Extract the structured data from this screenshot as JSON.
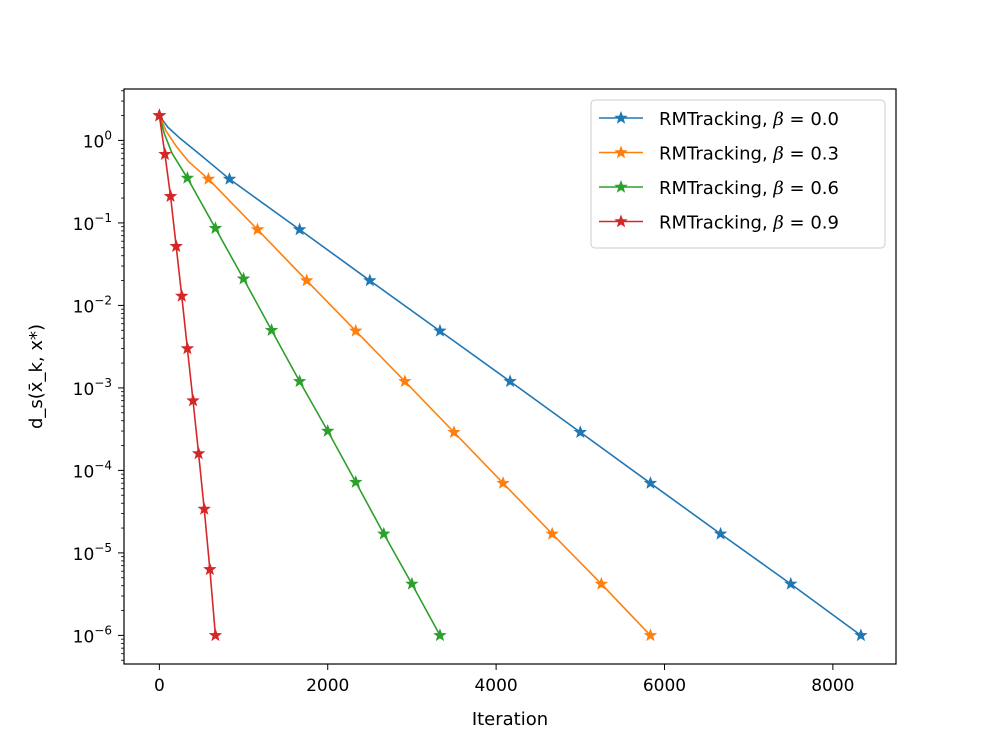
{
  "chart_data": {
    "type": "line",
    "xlabel": "Iteration",
    "ylabel": "d_s(x̄_k, x*)",
    "yscale": "log",
    "xlim": [
      -420,
      8750
    ],
    "ylim": [
      4.5e-07,
      4.2
    ],
    "xticks": [
      {
        "value": 0,
        "label": "0"
      },
      {
        "value": 2000,
        "label": "2000"
      },
      {
        "value": 4000,
        "label": "4000"
      },
      {
        "value": 6000,
        "label": "6000"
      },
      {
        "value": 8000,
        "label": "8000"
      }
    ],
    "yticks": [
      {
        "value": 1,
        "base": "10",
        "exp": "0"
      },
      {
        "value": 0.1,
        "base": "10",
        "exp": "−1"
      },
      {
        "value": 0.01,
        "base": "10",
        "exp": "−2"
      },
      {
        "value": 0.001,
        "base": "10",
        "exp": "−3"
      },
      {
        "value": 0.0001,
        "base": "10",
        "exp": "−4"
      },
      {
        "value": 1e-05,
        "base": "10",
        "exp": "−5"
      },
      {
        "value": 1e-06,
        "base": "10",
        "exp": "−6"
      }
    ],
    "grid": false,
    "legend_position": "top-right",
    "marker": "star",
    "series": [
      {
        "name": "RMTracking, β = 0.0",
        "label_prefix": "RMTracking, ",
        "label_symbol": "β",
        "label_value": " = 0.0",
        "color": "#1f77b4",
        "curve": [
          [
            0,
            2.0
          ],
          [
            100,
            1.45
          ],
          [
            250,
            1.05
          ],
          [
            450,
            0.72
          ],
          [
            833,
            0.34
          ]
        ],
        "x": [
          0,
          833,
          1666,
          2500,
          3333,
          4166,
          5000,
          5833,
          6666,
          7500,
          8333
        ],
        "y": [
          2.0,
          0.34,
          0.083,
          0.02,
          0.0049,
          0.0012,
          0.00029,
          7e-05,
          1.7e-05,
          4.2e-06,
          1e-06
        ]
      },
      {
        "name": "RMTracking, β = 0.3",
        "label_prefix": "RMTracking, ",
        "label_symbol": "β",
        "label_value": " = 0.3",
        "color": "#ff7f0e",
        "curve": [
          [
            0,
            2.0
          ],
          [
            80,
            1.3
          ],
          [
            200,
            0.85
          ],
          [
            350,
            0.55
          ],
          [
            583,
            0.34
          ]
        ],
        "x": [
          0,
          583,
          1166,
          1750,
          2333,
          2916,
          3500,
          4083,
          4666,
          5250,
          5833
        ],
        "y": [
          2.0,
          0.34,
          0.083,
          0.02,
          0.0049,
          0.0012,
          0.00029,
          7e-05,
          1.7e-05,
          4.2e-06,
          1e-06
        ]
      },
      {
        "name": "RMTracking, β = 0.6",
        "label_prefix": "RMTracking, ",
        "label_symbol": "β",
        "label_value": " = 0.6",
        "color": "#2ca02c",
        "curve": [
          [
            0,
            2.0
          ],
          [
            60,
            1.2
          ],
          [
            150,
            0.7
          ],
          [
            333,
            0.35
          ]
        ],
        "x": [
          0,
          333,
          666,
          1000,
          1333,
          1666,
          2000,
          2333,
          2666,
          3000,
          3333
        ],
        "y": [
          2.0,
          0.35,
          0.086,
          0.021,
          0.005,
          0.0012,
          0.0003,
          7.2e-05,
          1.7e-05,
          4.2e-06,
          1e-06
        ]
      },
      {
        "name": "RMTracking, β = 0.9",
        "label_prefix": "RMTracking, ",
        "label_symbol": "β",
        "label_value": " = 0.9",
        "color": "#d62728",
        "curve": [
          [
            0,
            2.0
          ]
        ],
        "x": [
          0,
          66,
          133,
          200,
          266,
          333,
          400,
          466,
          533,
          600,
          666
        ],
        "y": [
          2.0,
          0.68,
          0.21,
          0.052,
          0.013,
          0.003,
          0.0007,
          0.00016,
          3.4e-05,
          6.3e-06,
          1e-06
        ]
      }
    ]
  }
}
